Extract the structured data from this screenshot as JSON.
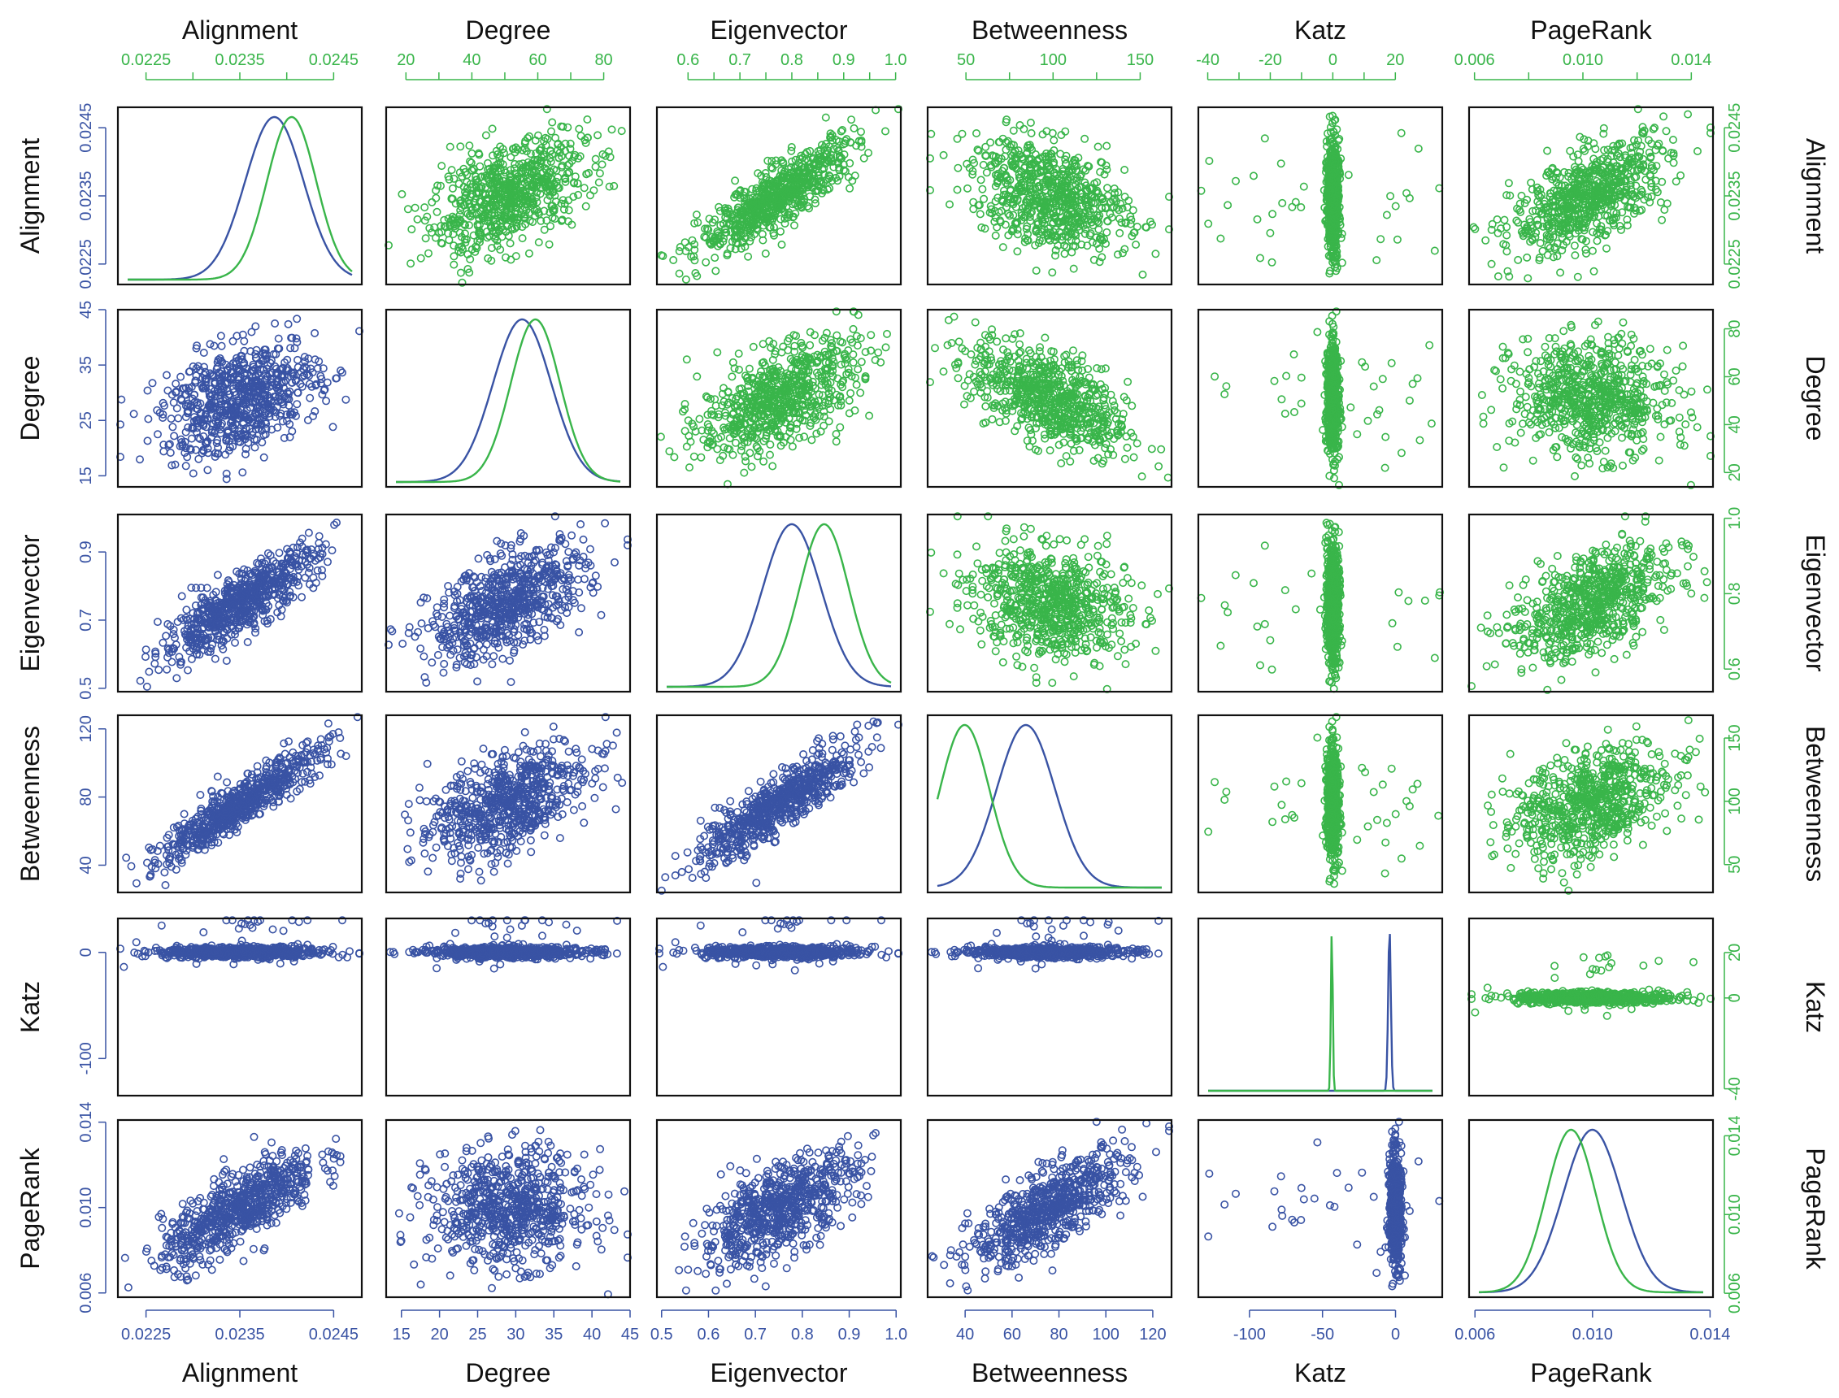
{
  "colors": {
    "blue": "#3953a4",
    "green": "#39b54a",
    "frame": "#111111"
  },
  "chart_data": {
    "type": "scatter-matrix",
    "title": "",
    "variables": [
      {
        "name": "Alignment",
        "lo": 0.0222,
        "hi": 0.0248,
        "lo_g": 0.0222,
        "hi_g": 0.0248
      },
      {
        "name": "Degree",
        "lo": 13,
        "hi": 45,
        "lo_g": 14,
        "hi_g": 88
      },
      {
        "name": "Eigenvector",
        "lo": 0.49,
        "hi": 1.01,
        "lo_g": 0.54,
        "hi_g": 1.01
      },
      {
        "name": "Betweenness",
        "lo": 24,
        "hi": 128,
        "lo_g": 28,
        "hi_g": 168
      },
      {
        "name": "Katz",
        "lo": -135,
        "hi": 32,
        "lo_g": -43,
        "hi_g": 35
      },
      {
        "name": "PageRank",
        "lo": 0.0058,
        "hi": 0.0141,
        "lo_g": 0.0058,
        "hi_g": 0.0148
      }
    ],
    "upper_axis_labels": [
      [
        "0.0225",
        "0.0235",
        "0.0245"
      ],
      [
        "20",
        "40",
        "60",
        "80"
      ],
      [
        "0.6",
        "0.7",
        "0.8",
        "0.9",
        "1.0"
      ],
      [
        "50",
        "100",
        "150"
      ],
      [
        "-40",
        "-20",
        "0",
        "20"
      ],
      [
        "0.006",
        "0.010",
        "0.014"
      ]
    ],
    "lower_axis_labels": [
      [
        "0.0225",
        "0.0235",
        "0.0245"
      ],
      [
        "15",
        "20",
        "25",
        "30",
        "35",
        "40",
        "45"
      ],
      [
        "0.5",
        "0.6",
        "0.7",
        "0.8",
        "0.9",
        "1.0"
      ],
      [
        "40",
        "60",
        "80",
        "100",
        "120"
      ],
      [
        "-100",
        "-50",
        "0"
      ],
      [
        "0.006",
        "0.010",
        "0.014"
      ]
    ],
    "lower_left_labels": [
      [
        "0.0225",
        "0.0235",
        "0.0245"
      ],
      [
        "15",
        "25",
        "35",
        "45"
      ],
      [
        "0.5",
        "0.7",
        "0.9"
      ],
      [
        "40",
        "80",
        "120"
      ],
      [
        "-100",
        "0"
      ],
      [
        "0.006",
        "0.010",
        "0.014"
      ]
    ],
    "upper_right_labels": [
      [
        "0.0225",
        "0.0235",
        "0.0245"
      ],
      [
        "20",
        "40",
        "60",
        "80"
      ],
      [
        "0.6",
        "0.8",
        "1.0"
      ],
      [
        "50",
        "100",
        "150"
      ],
      [
        "-40",
        "0",
        "20"
      ],
      [
        "0.006",
        "0.010",
        "0.014"
      ]
    ],
    "correlations_blue_lower": [
      [
        1.0,
        0.38,
        0.85,
        0.92,
        0.0,
        0.78
      ],
      [
        0.38,
        1.0,
        0.55,
        0.5,
        0.0,
        0.0
      ],
      [
        0.85,
        0.55,
        1.0,
        0.88,
        0.0,
        0.65
      ],
      [
        0.92,
        0.5,
        0.88,
        1.0,
        0.0,
        0.75
      ],
      [
        0.0,
        0.0,
        0.0,
        0.0,
        1.0,
        0.0
      ],
      [
        0.78,
        0.0,
        0.65,
        0.75,
        0.0,
        1.0
      ]
    ],
    "correlations_green_upper": [
      [
        1.0,
        0.5,
        0.85,
        -0.35,
        0.0,
        0.6
      ],
      [
        0.5,
        1.0,
        0.55,
        -0.55,
        0.0,
        -0.1
      ],
      [
        0.85,
        0.55,
        1.0,
        -0.2,
        0.0,
        0.45
      ],
      [
        -0.35,
        -0.55,
        -0.2,
        1.0,
        0.0,
        0.4
      ],
      [
        0.0,
        0.0,
        0.0,
        0.0,
        1.0,
        0.0
      ],
      [
        0.6,
        -0.1,
        0.45,
        0.4,
        0.0,
        1.0
      ]
    ],
    "density_peaks": [
      {
        "blue_mode": 0.0239,
        "green_mode": 0.0241
      },
      {
        "blue_mode": 31,
        "green_mode": 60
      },
      {
        "blue_mode": 0.78,
        "green_mode": 0.87
      },
      {
        "blue_mode": 65,
        "green_mode": 45
      },
      {
        "blue_mode": 0,
        "green_mode": 0
      },
      {
        "blue_mode": 0.01,
        "green_mode": 0.0095
      }
    ],
    "series": [
      {
        "name": "blue group (lower panels, left/bottom axes)",
        "color": "#3953a4"
      },
      {
        "name": "green group (upper panels, top/right axes)",
        "color": "#39b54a"
      }
    ],
    "n_points_per_panel": 700
  }
}
